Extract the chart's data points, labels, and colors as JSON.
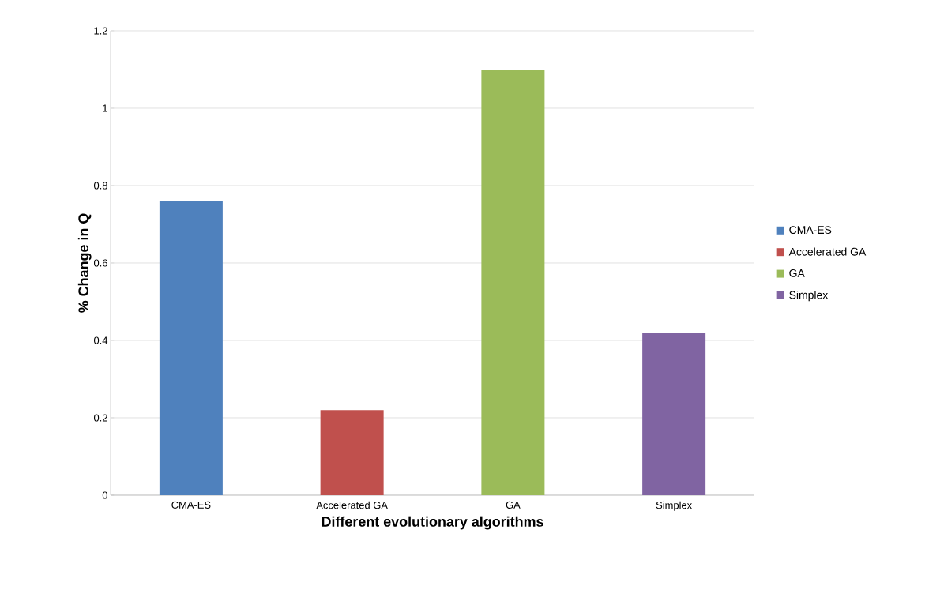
{
  "chart_data": {
    "type": "bar",
    "xlabel": "Different evolutionary algorithms",
    "ylabel": "% Change in Q",
    "categories": [
      "CMA-ES",
      "Accelerated GA",
      "GA",
      "Simplex"
    ],
    "series": [
      {
        "name": "CMA-ES",
        "color": "#4f81bd",
        "values": [
          0.76,
          null,
          null,
          null
        ]
      },
      {
        "name": "Accelerated GA",
        "color": "#c0504d",
        "values": [
          null,
          0.22,
          null,
          null
        ]
      },
      {
        "name": "GA",
        "color": "#9bbb59",
        "values": [
          null,
          null,
          1.1,
          null
        ]
      },
      {
        "name": "Simplex",
        "color": "#8064a2",
        "values": [
          null,
          null,
          null,
          0.42
        ]
      }
    ],
    "ylim": [
      0,
      1.2
    ],
    "yticks": [
      0,
      0.2,
      0.4,
      0.6,
      0.8,
      1,
      1.2
    ],
    "grid": "y",
    "legend": "right"
  }
}
